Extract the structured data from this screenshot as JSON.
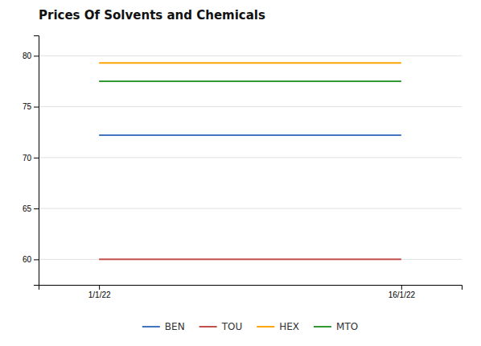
{
  "chart_data": {
    "type": "line",
    "title": "Prices Of Solvents and Chemicals",
    "x": [
      1,
      16
    ],
    "xlim": [
      -2,
      19
    ],
    "xticks": [
      {
        "value": 1,
        "label": "1/1/22"
      },
      {
        "value": 16,
        "label": "16/1/22"
      }
    ],
    "series": [
      {
        "name": "BEN",
        "color": "#4472C4",
        "values": [
          72.2,
          72.2
        ]
      },
      {
        "name": "TOU",
        "color": "#C0504D",
        "values": [
          60.0,
          60.0
        ]
      },
      {
        "name": "HEX",
        "color": "#FFA500",
        "values": [
          79.3,
          79.3
        ]
      },
      {
        "name": "MTO",
        "color": "#339933",
        "values": [
          77.5,
          77.5
        ]
      }
    ],
    "ylim": [
      57.5,
      82
    ],
    "yticks": [
      60,
      65,
      70,
      75,
      80
    ],
    "grid": true,
    "legend": "bottom"
  }
}
